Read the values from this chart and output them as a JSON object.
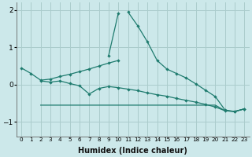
{
  "xlabel": "Humidex (Indice chaleur)",
  "color": "#1e7b6e",
  "bg_color": "#cce8ea",
  "grid_color": "#aacccc",
  "ylim": [
    -1.4,
    2.2
  ],
  "yticks": [
    -1,
    0,
    1,
    2
  ],
  "x": [
    0,
    1,
    2,
    3,
    4,
    5,
    6,
    7,
    8,
    9,
    10,
    11,
    12,
    13,
    14,
    15,
    16,
    17,
    18,
    19,
    20,
    21,
    22,
    23
  ],
  "line_spike": [
    null,
    null,
    null,
    null,
    null,
    null,
    null,
    null,
    null,
    null,
    null,
    1.95,
    1.58,
    1.15,
    0.65,
    0.42,
    0.3,
    0.18,
    0.02,
    -0.15,
    -0.32,
    -0.68,
    -0.72,
    -0.65
  ],
  "line_spike_left": [
    null,
    null,
    null,
    null,
    null,
    null,
    null,
    null,
    null,
    0.78,
    1.92,
    null,
    null,
    null,
    null,
    null,
    null,
    null,
    null,
    null,
    null,
    null,
    null,
    null
  ],
  "line_diagonal": [
    0.45,
    0.3,
    0.12,
    0.15,
    0.22,
    0.28,
    0.35,
    0.42,
    0.5,
    0.58,
    0.65,
    null,
    null,
    null,
    null,
    null,
    null,
    null,
    null,
    null,
    null,
    null,
    null,
    null
  ],
  "line_zero": [
    null,
    null,
    0.1,
    0.07,
    0.1,
    0.03,
    -0.03,
    -0.25,
    -0.1,
    -0.05,
    -0.08,
    -0.12,
    -0.16,
    -0.22,
    -0.27,
    -0.31,
    -0.37,
    -0.42,
    -0.47,
    -0.53,
    -0.6,
    -0.7,
    -0.72,
    -0.65
  ],
  "line_flat": [
    null,
    null,
    -0.55,
    -0.55,
    -0.55,
    -0.55,
    -0.55,
    -0.55,
    -0.55,
    -0.55,
    -0.55,
    -0.55,
    -0.55,
    -0.55,
    -0.55,
    -0.55,
    -0.55,
    -0.55,
    -0.55,
    -0.55,
    -0.55,
    -0.7,
    -0.72,
    -0.65
  ],
  "xtick_labels": [
    "0",
    "1",
    "2",
    "3",
    "4",
    "5",
    "6",
    "7",
    "8",
    "9",
    "10",
    "11",
    "12",
    "13",
    "14",
    "15",
    "16",
    "17",
    "18",
    "19",
    "20",
    "21",
    "22",
    "23"
  ]
}
